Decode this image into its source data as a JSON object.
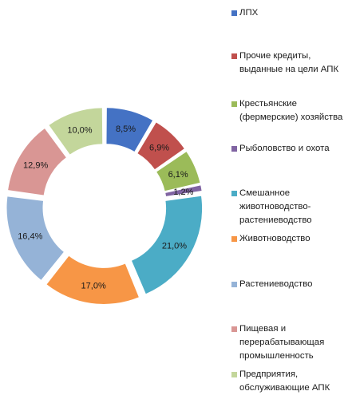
{
  "chart_data": {
    "type": "pie",
    "variant": "exploded-donut",
    "slices": [
      {
        "label": "ЛПХ",
        "value": 8.5,
        "display": "8,5%",
        "color": "#4472c4"
      },
      {
        "label": "Прочие кредиты,\nвыданные на цели АПК",
        "value": 6.9,
        "display": "6,9%",
        "color": "#c0504d"
      },
      {
        "label": "Крестьянские\n(фермерские) хозяйства",
        "value": 6.1,
        "display": "6,1%",
        "color": "#9bbb59"
      },
      {
        "label": "Рыболовство и охота",
        "value": 1.2,
        "display": "1,2%",
        "color": "#8064a2"
      },
      {
        "label": "Смешанное\nживотноводство-\nрастениеводство",
        "value": 21.0,
        "display": "21,0%",
        "color": "#4bacc6"
      },
      {
        "label": "Животноводство",
        "value": 17.0,
        "display": "17,0%",
        "color": "#f79646"
      },
      {
        "label": "Растениеводство",
        "value": 16.4,
        "display": "16,4%",
        "color": "#95b3d7"
      },
      {
        "label": "Пищевая и\nперерабатывающая\nпромышленность",
        "value": 12.9,
        "display": "12,9%",
        "color": "#d99694"
      },
      {
        "label": "Предприятия,\nобслуживающие АПК",
        "value": 10.0,
        "display": "10,0%",
        "color": "#c3d69b"
      }
    ],
    "legend_position": "right"
  }
}
